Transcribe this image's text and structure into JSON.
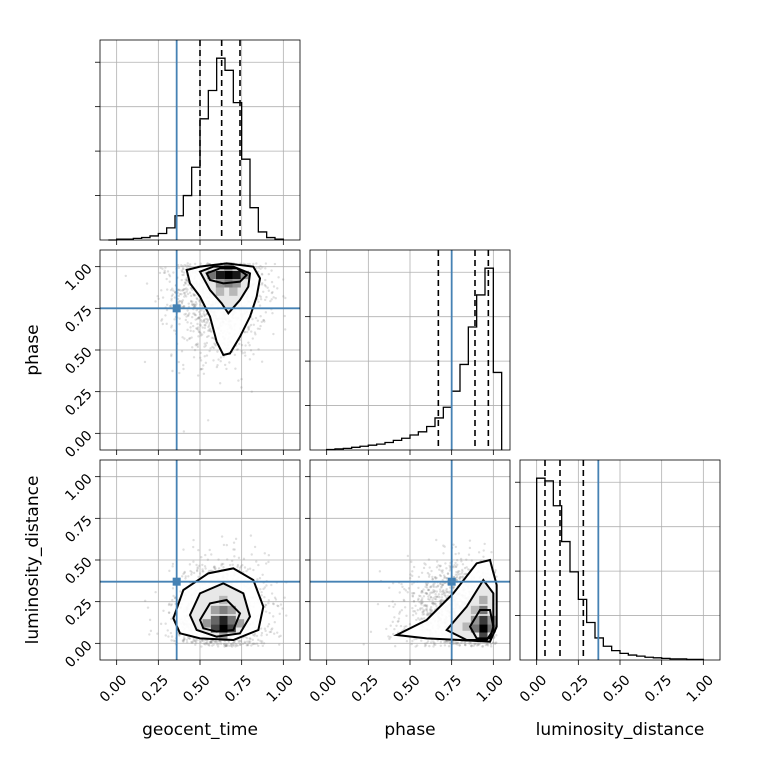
{
  "chart_data": {
    "type": "corner",
    "parameters": [
      "geocent_time",
      "phase",
      "luminosity_distance"
    ],
    "axis_ranges": {
      "geocent_time": [
        -0.1,
        1.1
      ],
      "phase": [
        -0.1,
        1.1
      ],
      "luminosity_distance": [
        -0.1,
        1.1
      ]
    },
    "tick_values": [
      0.0,
      0.25,
      0.5,
      0.75,
      1.0
    ],
    "tick_labels": [
      "0.00",
      "0.25",
      "0.50",
      "0.75",
      "1.00"
    ],
    "truth_values": {
      "geocent_time": 0.36,
      "phase": 0.75,
      "luminosity_distance": 0.37
    },
    "truth_color": "#4682b4",
    "quantiles": {
      "geocent_time": [
        0.5,
        0.63,
        0.74
      ],
      "phase": [
        0.67,
        0.89,
        0.97
      ],
      "luminosity_distance": [
        0.05,
        0.14,
        0.28
      ]
    },
    "histograms": {
      "geocent_time": {
        "bin_edges": [
          -0.05,
          0.0,
          0.05,
          0.1,
          0.15,
          0.2,
          0.25,
          0.3,
          0.35,
          0.4,
          0.45,
          0.5,
          0.55,
          0.6,
          0.65,
          0.7,
          0.75,
          0.8,
          0.85,
          0.9,
          0.95,
          1.0
        ],
        "counts": [
          0,
          1,
          1,
          2,
          3,
          5,
          8,
          15,
          30,
          55,
          90,
          150,
          185,
          225,
          210,
          170,
          100,
          40,
          10,
          3,
          1
        ]
      },
      "phase": {
        "bin_edges": [
          0.0,
          0.05,
          0.1,
          0.15,
          0.2,
          0.25,
          0.3,
          0.35,
          0.4,
          0.45,
          0.5,
          0.55,
          0.6,
          0.65,
          0.7,
          0.75,
          0.8,
          0.85,
          0.9,
          0.95,
          1.0,
          1.05
        ],
        "counts": [
          1,
          2,
          3,
          5,
          7,
          9,
          11,
          14,
          18,
          22,
          28,
          34,
          44,
          60,
          80,
          110,
          160,
          230,
          290,
          340,
          145
        ]
      },
      "luminosity_distance": {
        "bin_edges": [
          0.0,
          0.05,
          0.1,
          0.15,
          0.2,
          0.25,
          0.3,
          0.35,
          0.4,
          0.45,
          0.5,
          0.55,
          0.6,
          0.65,
          0.7,
          0.75,
          0.8,
          0.85,
          0.9,
          0.95,
          1.0
        ],
        "counts": [
          330,
          325,
          280,
          215,
          160,
          110,
          68,
          40,
          25,
          17,
          12,
          9,
          7,
          5,
          4,
          3,
          2,
          2,
          1,
          1
        ]
      }
    },
    "joint_panels": [
      {
        "x": "geocent_time",
        "y": "phase",
        "density_peak": [
          0.67,
          0.95
        ],
        "contours": [
          [
            [
              0.42,
              0.98
            ],
            [
              0.5,
              1.0
            ],
            [
              0.66,
              1.02
            ],
            [
              0.82,
              1.0
            ],
            [
              0.86,
              0.93
            ],
            [
              0.84,
              0.82
            ],
            [
              0.8,
              0.7
            ],
            [
              0.74,
              0.58
            ],
            [
              0.68,
              0.48
            ],
            [
              0.64,
              0.47
            ],
            [
              0.6,
              0.55
            ],
            [
              0.56,
              0.7
            ],
            [
              0.5,
              0.82
            ],
            [
              0.44,
              0.9
            ],
            [
              0.42,
              0.98
            ]
          ],
          [
            [
              0.5,
              0.97
            ],
            [
              0.58,
              1.0
            ],
            [
              0.7,
              1.0
            ],
            [
              0.8,
              0.96
            ],
            [
              0.79,
              0.88
            ],
            [
              0.74,
              0.8
            ],
            [
              0.67,
              0.72
            ],
            [
              0.63,
              0.78
            ],
            [
              0.56,
              0.86
            ],
            [
              0.5,
              0.97
            ]
          ],
          [
            [
              0.54,
              0.96
            ],
            [
              0.62,
              0.99
            ],
            [
              0.72,
              0.99
            ],
            [
              0.78,
              0.95
            ],
            [
              0.74,
              0.91
            ],
            [
              0.64,
              0.9
            ],
            [
              0.56,
              0.92
            ],
            [
              0.54,
              0.96
            ]
          ]
        ],
        "density_cells": [
          {
            "x": 0.62,
            "y": 0.95,
            "level": 0.9
          },
          {
            "x": 0.67,
            "y": 0.95,
            "level": 1.0
          },
          {
            "x": 0.72,
            "y": 0.95,
            "level": 0.9
          },
          {
            "x": 0.57,
            "y": 0.95,
            "level": 0.5
          },
          {
            "x": 0.77,
            "y": 0.95,
            "level": 0.35
          },
          {
            "x": 0.62,
            "y": 0.9,
            "level": 0.35
          },
          {
            "x": 0.67,
            "y": 0.9,
            "level": 0.45
          },
          {
            "x": 0.72,
            "y": 0.9,
            "level": 0.35
          },
          {
            "x": 0.67,
            "y": 1.0,
            "level": 0.3
          },
          {
            "x": 0.62,
            "y": 0.85,
            "level": 0.2
          },
          {
            "x": 0.7,
            "y": 0.85,
            "level": 0.2
          }
        ],
        "scatter_center": [
          0.62,
          0.85
        ],
        "scatter_spread": [
          0.14,
          0.2
        ]
      },
      {
        "x": "geocent_time",
        "y": "luminosity_distance",
        "density_peak": [
          0.63,
          0.1
        ],
        "contours": [
          [
            [
              0.34,
              0.15
            ],
            [
              0.4,
              0.32
            ],
            [
              0.55,
              0.42
            ],
            [
              0.7,
              0.45
            ],
            [
              0.82,
              0.38
            ],
            [
              0.88,
              0.22
            ],
            [
              0.85,
              0.08
            ],
            [
              0.7,
              0.02
            ],
            [
              0.5,
              0.03
            ],
            [
              0.38,
              0.06
            ],
            [
              0.34,
              0.15
            ]
          ],
          [
            [
              0.44,
              0.17
            ],
            [
              0.5,
              0.3
            ],
            [
              0.64,
              0.36
            ],
            [
              0.76,
              0.3
            ],
            [
              0.8,
              0.16
            ],
            [
              0.74,
              0.06
            ],
            [
              0.6,
              0.04
            ],
            [
              0.48,
              0.08
            ],
            [
              0.44,
              0.17
            ]
          ],
          [
            [
              0.5,
              0.14
            ],
            [
              0.56,
              0.24
            ],
            [
              0.66,
              0.26
            ],
            [
              0.74,
              0.18
            ],
            [
              0.7,
              0.08
            ],
            [
              0.6,
              0.07
            ],
            [
              0.52,
              0.09
            ],
            [
              0.5,
              0.14
            ]
          ]
        ],
        "density_cells": [
          {
            "x": 0.64,
            "y": 0.09,
            "level": 1.0
          },
          {
            "x": 0.64,
            "y": 0.14,
            "level": 0.85
          },
          {
            "x": 0.59,
            "y": 0.09,
            "level": 0.7
          },
          {
            "x": 0.69,
            "y": 0.09,
            "level": 0.7
          },
          {
            "x": 0.59,
            "y": 0.14,
            "level": 0.55
          },
          {
            "x": 0.69,
            "y": 0.14,
            "level": 0.5
          },
          {
            "x": 0.64,
            "y": 0.2,
            "level": 0.45
          },
          {
            "x": 0.54,
            "y": 0.12,
            "level": 0.35
          },
          {
            "x": 0.74,
            "y": 0.12,
            "level": 0.3
          },
          {
            "x": 0.59,
            "y": 0.2,
            "level": 0.3
          },
          {
            "x": 0.69,
            "y": 0.2,
            "level": 0.3
          },
          {
            "x": 0.64,
            "y": 0.26,
            "level": 0.2
          },
          {
            "x": 0.64,
            "y": 0.04,
            "level": 0.3
          }
        ],
        "scatter_center": [
          0.62,
          0.18
        ],
        "scatter_spread": [
          0.14,
          0.16
        ]
      },
      {
        "x": "phase",
        "y": "luminosity_distance",
        "density_peak": [
          0.94,
          0.1
        ],
        "contours": [
          [
            [
              0.42,
              0.05
            ],
            [
              0.6,
              0.14
            ],
            [
              0.76,
              0.3
            ],
            [
              0.9,
              0.48
            ],
            [
              0.98,
              0.5
            ],
            [
              1.02,
              0.35
            ],
            [
              1.02,
              0.1
            ],
            [
              0.98,
              0.01
            ],
            [
              0.8,
              0.02
            ],
            [
              0.6,
              0.03
            ],
            [
              0.42,
              0.05
            ]
          ],
          [
            [
              0.72,
              0.08
            ],
            [
              0.84,
              0.22
            ],
            [
              0.94,
              0.38
            ],
            [
              1.0,
              0.3
            ],
            [
              1.0,
              0.08
            ],
            [
              0.96,
              0.02
            ],
            [
              0.84,
              0.02
            ],
            [
              0.72,
              0.08
            ]
          ],
          [
            [
              0.86,
              0.1
            ],
            [
              0.92,
              0.2
            ],
            [
              0.98,
              0.2
            ],
            [
              1.0,
              0.1
            ],
            [
              0.98,
              0.03
            ],
            [
              0.9,
              0.03
            ],
            [
              0.86,
              0.1
            ]
          ]
        ],
        "density_cells": [
          {
            "x": 0.94,
            "y": 0.09,
            "level": 1.0
          },
          {
            "x": 0.94,
            "y": 0.14,
            "level": 0.75
          },
          {
            "x": 0.94,
            "y": 0.04,
            "level": 0.7
          },
          {
            "x": 0.94,
            "y": 0.2,
            "level": 0.5
          },
          {
            "x": 0.89,
            "y": 0.09,
            "level": 0.5
          },
          {
            "x": 0.99,
            "y": 0.09,
            "level": 0.5
          },
          {
            "x": 0.89,
            "y": 0.14,
            "level": 0.35
          },
          {
            "x": 0.99,
            "y": 0.14,
            "level": 0.35
          },
          {
            "x": 0.94,
            "y": 0.26,
            "level": 0.25
          },
          {
            "x": 0.84,
            "y": 0.1,
            "level": 0.2
          },
          {
            "x": 0.89,
            "y": 0.2,
            "level": 0.2
          }
        ],
        "scatter_center": [
          0.8,
          0.2
        ],
        "scatter_spread": [
          0.16,
          0.14
        ]
      }
    ],
    "grid": true
  }
}
